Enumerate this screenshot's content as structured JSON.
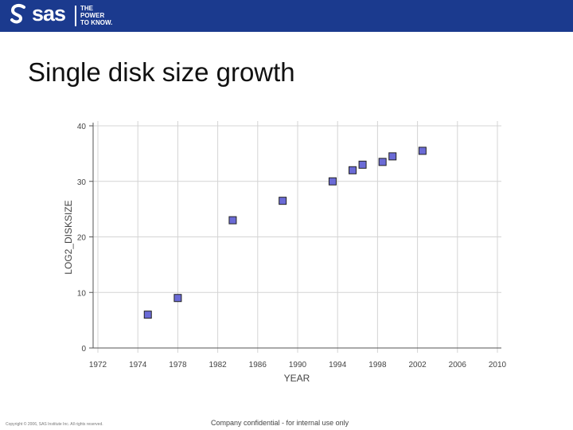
{
  "header": {
    "brand": "sas",
    "tagline": [
      "THE",
      "POWER",
      "TO KNOW."
    ],
    "background_color": "#1b3a8e"
  },
  "slide": {
    "title": "Single disk size growth"
  },
  "chart_data": {
    "type": "scatter",
    "title": "",
    "xlabel": "YEAR",
    "ylabel": "LOG2_DISKSIZE",
    "x_tick_labels": [
      "1972",
      "1974",
      "1978",
      "1982",
      "1986",
      "1990",
      "1994",
      "1998",
      "2002",
      "2006",
      "2010"
    ],
    "y_tick_labels": [
      "0",
      "10",
      "20",
      "30",
      "40"
    ],
    "ylim": [
      0,
      40
    ],
    "grid": true,
    "series": [
      {
        "marker_color": "#6b6bd6",
        "points": [
          {
            "x": 1975,
            "y": 6
          },
          {
            "x": 1978,
            "y": 9
          },
          {
            "x": 1983.5,
            "y": 23
          },
          {
            "x": 1988.5,
            "y": 26.5
          },
          {
            "x": 1993.5,
            "y": 30
          },
          {
            "x": 1995.5,
            "y": 32
          },
          {
            "x": 1996.5,
            "y": 33
          },
          {
            "x": 1998.5,
            "y": 33.5
          },
          {
            "x": 1999.5,
            "y": 34.5
          },
          {
            "x": 2002.5,
            "y": 35.5
          }
        ]
      }
    ]
  },
  "footer": {
    "copyright": "Copyright © 2006, SAS Institute Inc. All rights reserved.",
    "confidential": "Company confidential - for internal use only"
  }
}
